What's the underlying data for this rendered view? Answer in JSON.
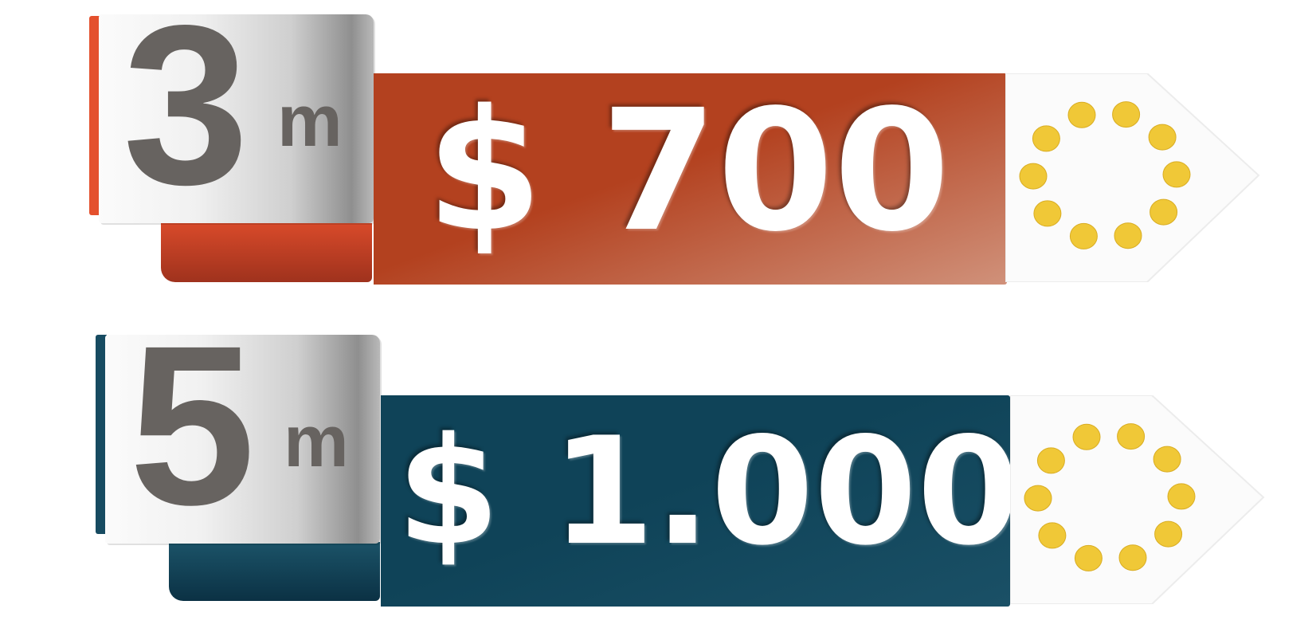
{
  "banners": [
    {
      "number": "3",
      "unit": "m",
      "price": "$ 700",
      "colors": {
        "primary": "#b3411f",
        "primary_light": "#d0917a",
        "strip": "#e4502d",
        "base_dark": "#9f321d",
        "base_light": "#d84a2a"
      }
    },
    {
      "number": "5",
      "unit": "m",
      "price": "$ 1.000",
      "colors": {
        "primary": "#0f4358",
        "primary_light": "#1a5066",
        "strip": "#174b61",
        "base_dark": "#0b3144",
        "base_light": "#1b5368"
      }
    }
  ],
  "dot_color": "#f0c837",
  "arrow_color": "#fbfbfb"
}
